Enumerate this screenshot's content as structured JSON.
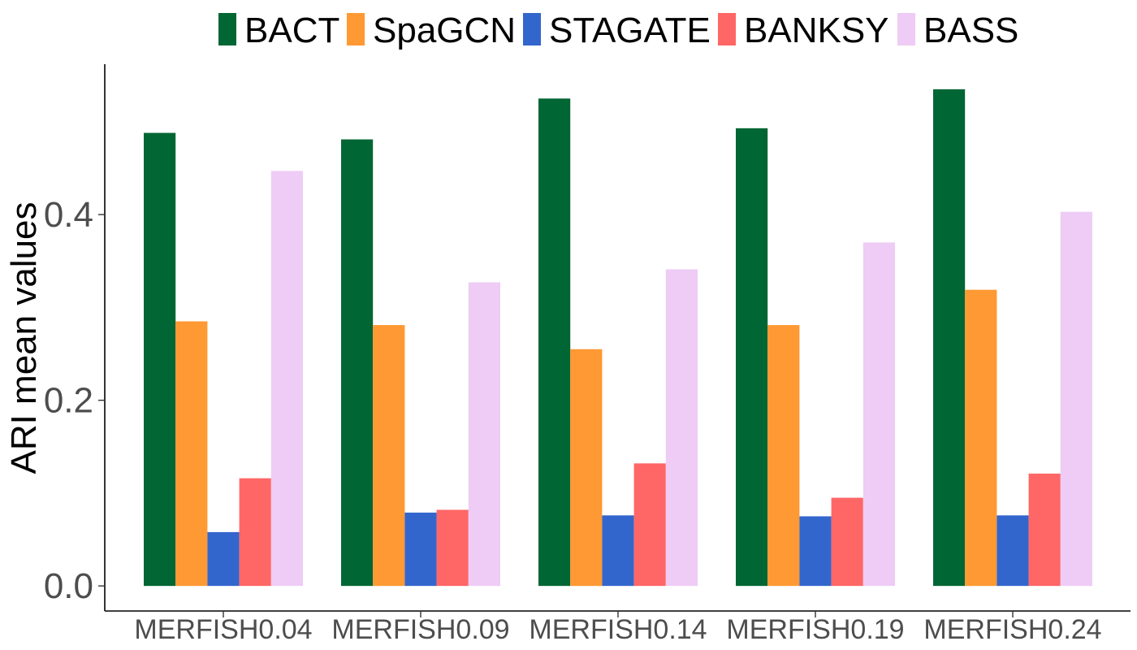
{
  "chart_data": {
    "type": "bar",
    "title": "",
    "xlabel": "",
    "ylabel": "ARI mean values",
    "categories": [
      "MERFISH0.04",
      "MERFISH0.09",
      "MERFISH0.14",
      "MERFISH0.19",
      "MERFISH0.24"
    ],
    "series": [
      {
        "name": "BACT",
        "color": "#006633",
        "values": [
          0.488,
          0.481,
          0.525,
          0.493,
          0.535
        ]
      },
      {
        "name": "SpaGCN",
        "color": "#FF9933",
        "values": [
          0.285,
          0.281,
          0.255,
          0.281,
          0.319
        ]
      },
      {
        "name": "STAGATE",
        "color": "#3366CC",
        "values": [
          0.058,
          0.079,
          0.076,
          0.075,
          0.076
        ]
      },
      {
        "name": "BANKSY",
        "color": "#FF6666",
        "values": [
          0.116,
          0.082,
          0.132,
          0.095,
          0.121
        ]
      },
      {
        "name": "BASS",
        "color": "#EECCF5",
        "values": [
          0.447,
          0.327,
          0.341,
          0.37,
          0.403
        ]
      }
    ],
    "yticks": [
      "0.0",
      "0.2",
      "0.4"
    ],
    "ylim": [
      -0.027,
      0.562
    ],
    "legend_position": "top",
    "grid": false
  }
}
